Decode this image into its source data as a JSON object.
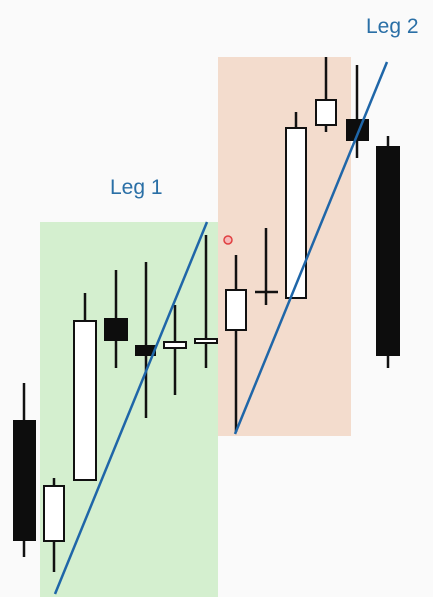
{
  "labels": {
    "leg1": "Leg 1",
    "leg2": "Leg 2"
  }
}
